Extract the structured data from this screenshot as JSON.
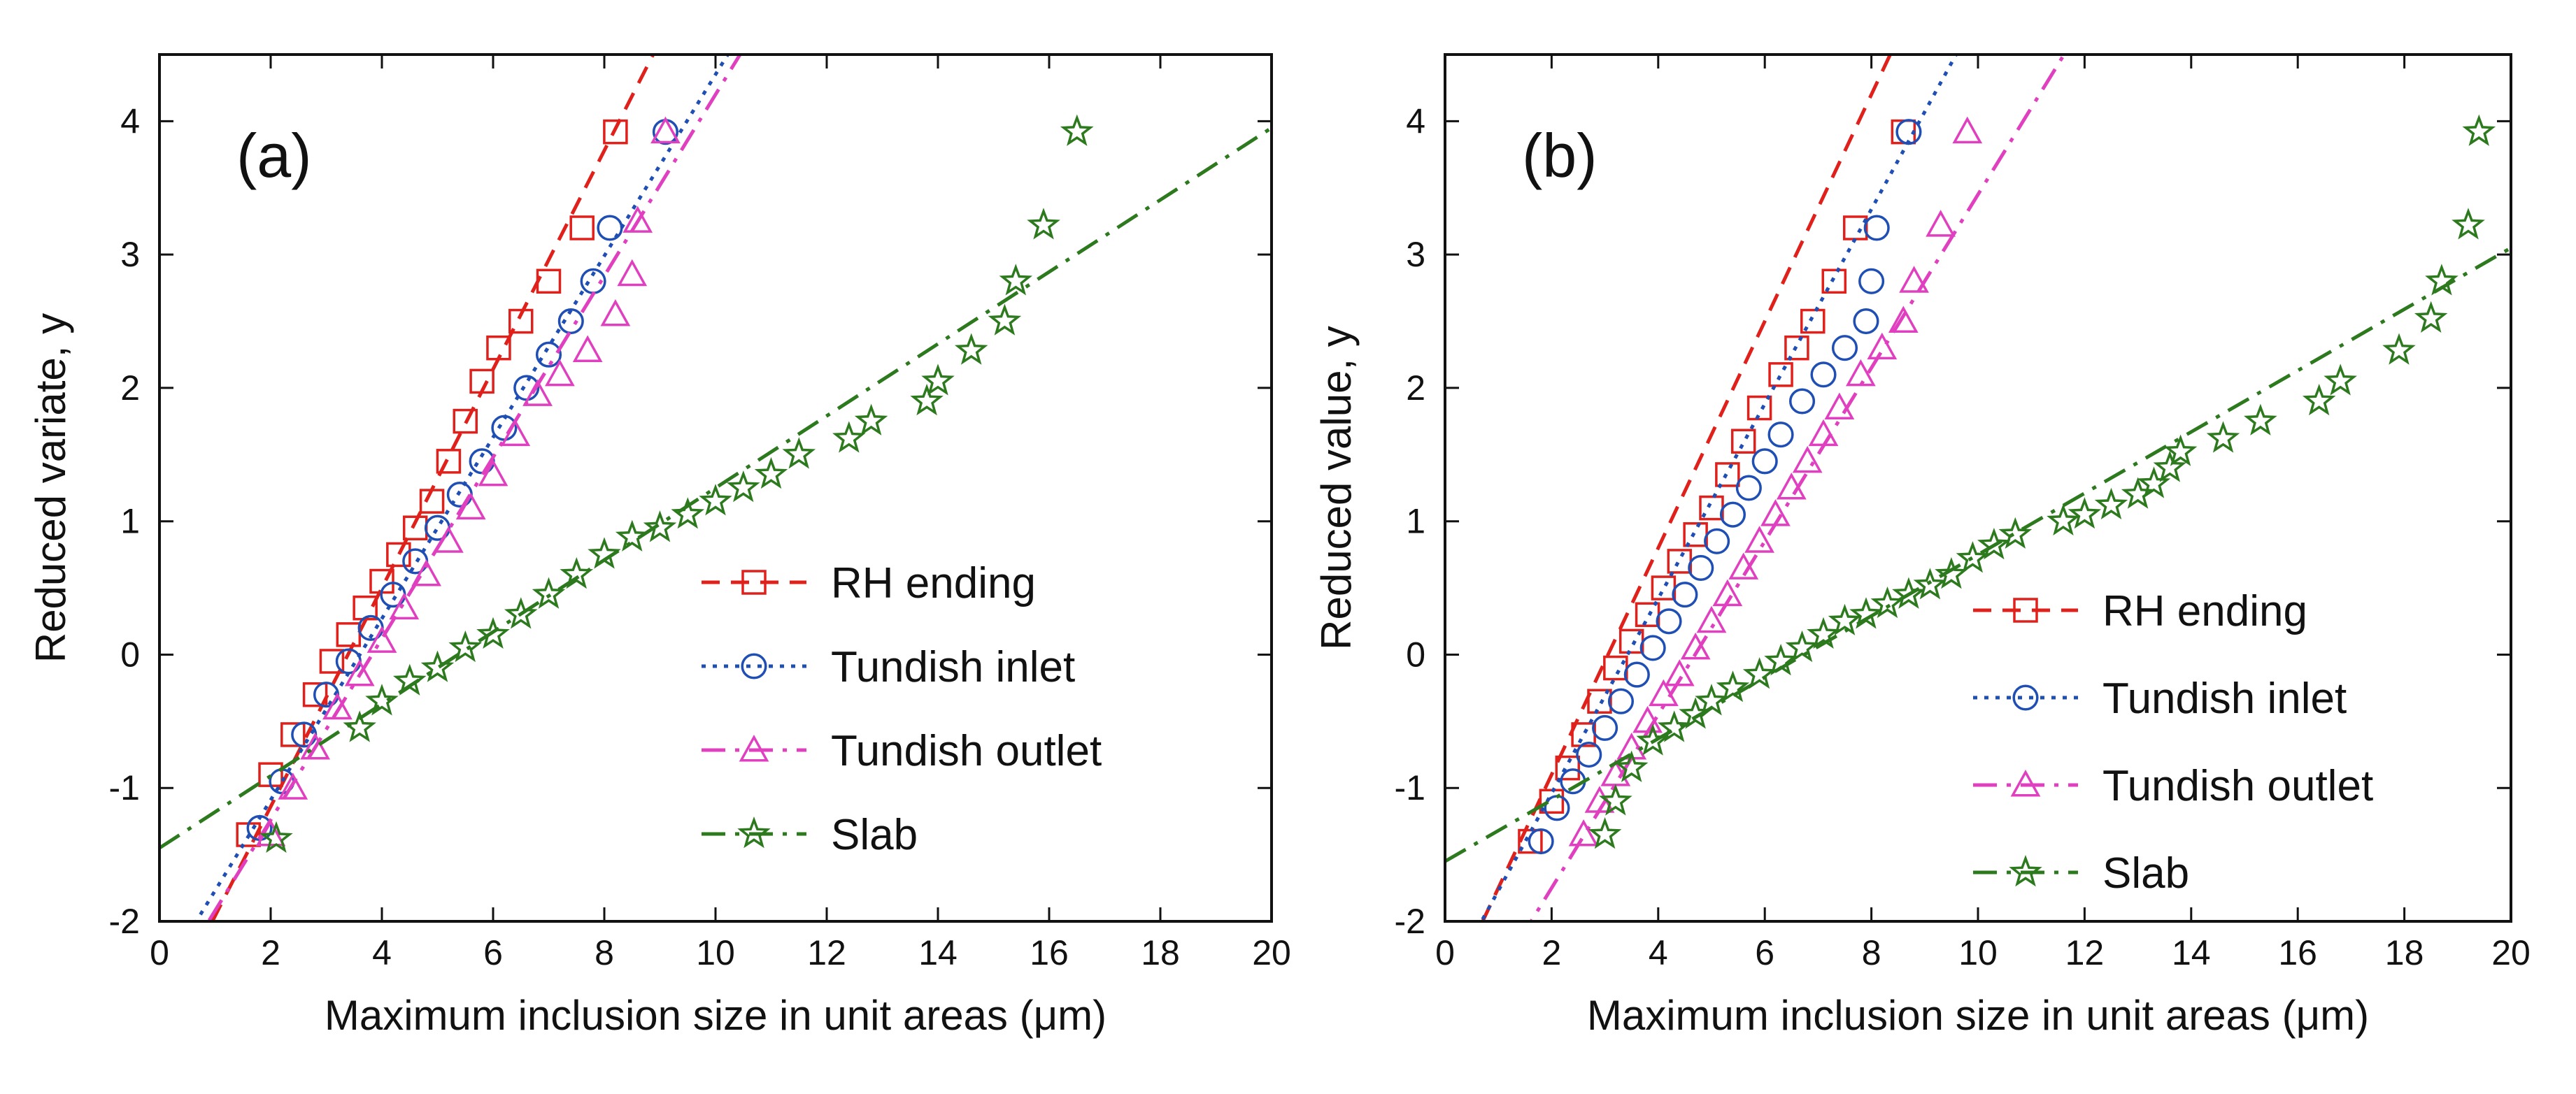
{
  "chart_data": [
    {
      "type": "scatter",
      "panel_label": "(a)",
      "xlabel": "Maximum inclusion size in unit areas (μm)",
      "ylabel": "Reduced variate, y",
      "xlim": [
        0,
        20
      ],
      "ylim": [
        -2,
        4.5
      ],
      "xticks": [
        0,
        2,
        4,
        6,
        8,
        10,
        12,
        14,
        16,
        18,
        20
      ],
      "yticks": [
        -2,
        -1,
        0,
        1,
        2,
        3,
        4
      ],
      "legend_position": "center-right",
      "series": [
        {
          "name": "RH ending",
          "color": "#e0201b",
          "marker": "square",
          "line_style": "dashed",
          "fit": {
            "slope": 0.82,
            "intercept": -2.78
          },
          "points": [
            [
              1.6,
              -1.35
            ],
            [
              2.0,
              -0.9
            ],
            [
              2.4,
              -0.6
            ],
            [
              2.8,
              -0.3
            ],
            [
              3.1,
              -0.05
            ],
            [
              3.4,
              0.15
            ],
            [
              3.7,
              0.35
            ],
            [
              4.0,
              0.55
            ],
            [
              4.3,
              0.75
            ],
            [
              4.6,
              0.95
            ],
            [
              4.9,
              1.15
            ],
            [
              5.2,
              1.45
            ],
            [
              5.5,
              1.75
            ],
            [
              5.8,
              2.05
            ],
            [
              6.1,
              2.3
            ],
            [
              6.5,
              2.5
            ],
            [
              7.0,
              2.8
            ],
            [
              7.6,
              3.2
            ],
            [
              8.2,
              3.92
            ]
          ]
        },
        {
          "name": "Tundish inlet",
          "color": "#1f4fb4",
          "marker": "circle",
          "line_style": "dotted",
          "fit": {
            "slope": 0.68,
            "intercept": -2.45
          },
          "points": [
            [
              1.8,
              -1.3
            ],
            [
              2.2,
              -0.95
            ],
            [
              2.6,
              -0.6
            ],
            [
              3.0,
              -0.3
            ],
            [
              3.4,
              -0.05
            ],
            [
              3.8,
              0.2
            ],
            [
              4.2,
              0.45
            ],
            [
              4.6,
              0.7
            ],
            [
              5.0,
              0.95
            ],
            [
              5.4,
              1.2
            ],
            [
              5.8,
              1.45
            ],
            [
              6.2,
              1.7
            ],
            [
              6.6,
              2.0
            ],
            [
              7.0,
              2.25
            ],
            [
              7.4,
              2.5
            ],
            [
              7.8,
              2.8
            ],
            [
              8.1,
              3.2
            ],
            [
              9.1,
              3.92
            ]
          ]
        },
        {
          "name": "Tundish outlet",
          "color": "#e040c0",
          "marker": "triangle",
          "line_style": "dash-dot",
          "fit": {
            "slope": 0.68,
            "intercept": -2.6
          },
          "points": [
            [
              2.0,
              -1.35
            ],
            [
              2.4,
              -1.0
            ],
            [
              2.8,
              -0.7
            ],
            [
              3.2,
              -0.4
            ],
            [
              3.6,
              -0.15
            ],
            [
              4.0,
              0.1
            ],
            [
              4.4,
              0.35
            ],
            [
              4.8,
              0.6
            ],
            [
              5.2,
              0.85
            ],
            [
              5.6,
              1.1
            ],
            [
              6.0,
              1.35
            ],
            [
              6.4,
              1.65
            ],
            [
              6.8,
              1.95
            ],
            [
              7.2,
              2.1
            ],
            [
              7.7,
              2.28
            ],
            [
              8.2,
              2.55
            ],
            [
              8.5,
              2.85
            ],
            [
              8.6,
              3.25
            ],
            [
              9.1,
              3.92
            ]
          ]
        },
        {
          "name": "Slab",
          "color": "#2d7a1e",
          "marker": "star",
          "line_style": "dash-dot",
          "fit": {
            "slope": 0.27,
            "intercept": -1.45
          },
          "points": [
            [
              2.1,
              -1.38
            ],
            [
              3.6,
              -0.55
            ],
            [
              4.0,
              -0.35
            ],
            [
              4.5,
              -0.2
            ],
            [
              5.0,
              -0.1
            ],
            [
              5.5,
              0.05
            ],
            [
              6.0,
              0.15
            ],
            [
              6.5,
              0.3
            ],
            [
              7.0,
              0.45
            ],
            [
              7.5,
              0.6
            ],
            [
              8.0,
              0.75
            ],
            [
              8.5,
              0.88
            ],
            [
              9.0,
              0.95
            ],
            [
              9.5,
              1.05
            ],
            [
              10.0,
              1.15
            ],
            [
              10.5,
              1.25
            ],
            [
              11.0,
              1.35
            ],
            [
              11.5,
              1.5
            ],
            [
              12.4,
              1.62
            ],
            [
              12.8,
              1.75
            ],
            [
              13.8,
              1.9
            ],
            [
              14.0,
              2.05
            ],
            [
              14.6,
              2.28
            ],
            [
              15.2,
              2.5
            ],
            [
              15.4,
              2.8
            ],
            [
              15.9,
              3.22
            ],
            [
              16.5,
              3.92
            ]
          ]
        }
      ]
    },
    {
      "type": "scatter",
      "panel_label": "(b)",
      "xlabel": "Maximum inclusion size in unit areas (μm)",
      "ylabel": "Reduced value, y",
      "xlim": [
        0,
        20
      ],
      "ylim": [
        -2,
        4.5
      ],
      "xticks": [
        0,
        2,
        4,
        6,
        8,
        10,
        12,
        14,
        16,
        18,
        20
      ],
      "yticks": [
        -2,
        -1,
        0,
        1,
        2,
        3,
        4
      ],
      "legend_position": "center-right",
      "series": [
        {
          "name": "RH ending",
          "color": "#e0201b",
          "marker": "square",
          "line_style": "dashed",
          "fit": {
            "slope": 0.85,
            "intercept": -2.6
          },
          "points": [
            [
              1.6,
              -1.4
            ],
            [
              2.0,
              -1.1
            ],
            [
              2.3,
              -0.85
            ],
            [
              2.6,
              -0.6
            ],
            [
              2.9,
              -0.35
            ],
            [
              3.2,
              -0.1
            ],
            [
              3.5,
              0.1
            ],
            [
              3.8,
              0.3
            ],
            [
              4.1,
              0.5
            ],
            [
              4.4,
              0.7
            ],
            [
              4.7,
              0.9
            ],
            [
              5.0,
              1.1
            ],
            [
              5.3,
              1.35
            ],
            [
              5.6,
              1.6
            ],
            [
              5.9,
              1.85
            ],
            [
              6.3,
              2.1
            ],
            [
              6.6,
              2.3
            ],
            [
              6.9,
              2.5
            ],
            [
              7.3,
              2.8
            ],
            [
              7.7,
              3.2
            ],
            [
              8.6,
              3.92
            ]
          ]
        },
        {
          "name": "Tundish inlet",
          "color": "#1f4fb4",
          "marker": "circle",
          "line_style": "dotted",
          "fit": {
            "slope": 0.73,
            "intercept": -2.5
          },
          "points": [
            [
              1.8,
              -1.4
            ],
            [
              2.1,
              -1.15
            ],
            [
              2.4,
              -0.95
            ],
            [
              2.7,
              -0.75
            ],
            [
              3.0,
              -0.55
            ],
            [
              3.3,
              -0.35
            ],
            [
              3.6,
              -0.15
            ],
            [
              3.9,
              0.05
            ],
            [
              4.2,
              0.25
            ],
            [
              4.5,
              0.45
            ],
            [
              4.8,
              0.65
            ],
            [
              5.1,
              0.85
            ],
            [
              5.4,
              1.05
            ],
            [
              5.7,
              1.25
            ],
            [
              6.0,
              1.45
            ],
            [
              6.3,
              1.65
            ],
            [
              6.7,
              1.9
            ],
            [
              7.1,
              2.1
            ],
            [
              7.5,
              2.3
            ],
            [
              7.9,
              2.5
            ],
            [
              8.0,
              2.8
            ],
            [
              8.1,
              3.2
            ],
            [
              8.7,
              3.92
            ]
          ]
        },
        {
          "name": "Tundish outlet",
          "color": "#e040c0",
          "marker": "triangle",
          "line_style": "dash-dot",
          "fit": {
            "slope": 0.65,
            "intercept": -3.05
          },
          "points": [
            [
              2.6,
              -1.35
            ],
            [
              2.9,
              -1.1
            ],
            [
              3.2,
              -0.9
            ],
            [
              3.5,
              -0.7
            ],
            [
              3.8,
              -0.5
            ],
            [
              4.1,
              -0.3
            ],
            [
              4.4,
              -0.15
            ],
            [
              4.7,
              0.05
            ],
            [
              5.0,
              0.25
            ],
            [
              5.3,
              0.45
            ],
            [
              5.6,
              0.65
            ],
            [
              5.9,
              0.85
            ],
            [
              6.2,
              1.05
            ],
            [
              6.5,
              1.25
            ],
            [
              6.8,
              1.45
            ],
            [
              7.1,
              1.65
            ],
            [
              7.4,
              1.85
            ],
            [
              7.8,
              2.1
            ],
            [
              8.2,
              2.3
            ],
            [
              8.6,
              2.5
            ],
            [
              8.8,
              2.8
            ],
            [
              9.3,
              3.22
            ],
            [
              9.8,
              3.92
            ]
          ]
        },
        {
          "name": "Slab",
          "color": "#2d7a1e",
          "marker": "star",
          "line_style": "dash-dot",
          "fit": {
            "slope": 0.23,
            "intercept": -1.55
          },
          "points": [
            [
              3.0,
              -1.35
            ],
            [
              3.2,
              -1.1
            ],
            [
              3.5,
              -0.85
            ],
            [
              3.9,
              -0.65
            ],
            [
              4.3,
              -0.55
            ],
            [
              4.7,
              -0.45
            ],
            [
              5.0,
              -0.35
            ],
            [
              5.4,
              -0.25
            ],
            [
              5.9,
              -0.15
            ],
            [
              6.3,
              -0.05
            ],
            [
              6.7,
              0.05
            ],
            [
              7.1,
              0.15
            ],
            [
              7.5,
              0.25
            ],
            [
              7.9,
              0.3
            ],
            [
              8.3,
              0.38
            ],
            [
              8.7,
              0.45
            ],
            [
              9.1,
              0.52
            ],
            [
              9.5,
              0.6
            ],
            [
              9.9,
              0.72
            ],
            [
              10.3,
              0.82
            ],
            [
              10.7,
              0.9
            ],
            [
              11.6,
              1.0
            ],
            [
              12.0,
              1.05
            ],
            [
              12.5,
              1.12
            ],
            [
              13.0,
              1.2
            ],
            [
              13.3,
              1.28
            ],
            [
              13.6,
              1.4
            ],
            [
              13.8,
              1.52
            ],
            [
              14.6,
              1.62
            ],
            [
              15.3,
              1.75
            ],
            [
              16.4,
              1.9
            ],
            [
              16.8,
              2.05
            ],
            [
              17.9,
              2.28
            ],
            [
              18.5,
              2.52
            ],
            [
              18.7,
              2.8
            ],
            [
              19.2,
              3.22
            ],
            [
              19.4,
              3.92
            ]
          ]
        }
      ]
    }
  ]
}
